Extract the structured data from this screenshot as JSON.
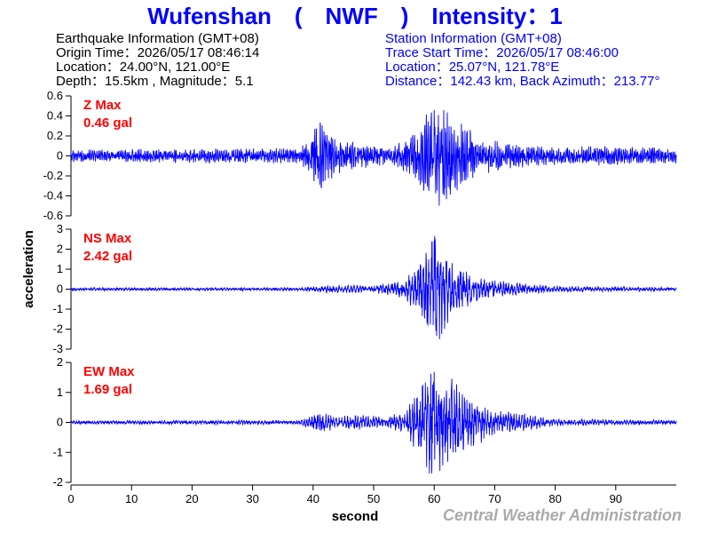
{
  "title": "Wufenshan　(　NWF　)　Intensity：1",
  "earthquake_info": [
    "Earthquake Information  (GMT+08)",
    "Origin Time：2026/05/17 08:46:14",
    "Location：24.00°N, 121.00°E",
    "Depth：15.5km , Magnitude：5.1"
  ],
  "station_info": [
    "Station Information  (GMT+08)",
    "Trace Start Time：2026/05/17 08:46:00",
    "Location：25.07°N, 121.78°E",
    "Distance：142.43 km, Back Azimuth：213.77°"
  ],
  "credit": "Central Weather Administration",
  "colors": {
    "title": "#0000ff",
    "trace": "#0000ff",
    "max_label": "#ff0000",
    "credit": "#aaaaaa",
    "axis": "#000000"
  },
  "chart_data": {
    "type": "line",
    "xlabel": "second",
    "ylabel": "acceleration",
    "xlim": [
      0,
      100
    ],
    "xticks": [
      0,
      10,
      20,
      30,
      40,
      50,
      60,
      70,
      80,
      90
    ],
    "panels": [
      {
        "component": "Z",
        "max_label": "Z Max",
        "max_value": "0.46 gal",
        "ylim": [
          -0.6,
          0.6
        ],
        "yticks": [
          0.6,
          0.4,
          0.2,
          0,
          -0.2,
          -0.4,
          -0.6
        ],
        "peak": 0.46,
        "envelope": [
          [
            0,
            0.05
          ],
          [
            38,
            0.06
          ],
          [
            41,
            0.28
          ],
          [
            44,
            0.14
          ],
          [
            48,
            0.1
          ],
          [
            53,
            0.07
          ],
          [
            56,
            0.15
          ],
          [
            59,
            0.36
          ],
          [
            61,
            0.42
          ],
          [
            63,
            0.32
          ],
          [
            67,
            0.16
          ],
          [
            72,
            0.1
          ],
          [
            80,
            0.07
          ],
          [
            86,
            0.08
          ],
          [
            100,
            0.06
          ]
        ]
      },
      {
        "component": "NS",
        "max_label": "NS Max",
        "max_value": "2.42 gal",
        "ylim": [
          -3,
          3
        ],
        "yticks": [
          3,
          2,
          1,
          0,
          -1,
          -2,
          -3
        ],
        "peak": 2.42,
        "envelope": [
          [
            0,
            0.06
          ],
          [
            38,
            0.06
          ],
          [
            42,
            0.14
          ],
          [
            50,
            0.17
          ],
          [
            55,
            0.35
          ],
          [
            58,
            1.2
          ],
          [
            60,
            2.35
          ],
          [
            61,
            2.0
          ],
          [
            63,
            1.1
          ],
          [
            66,
            0.6
          ],
          [
            70,
            0.35
          ],
          [
            80,
            0.12
          ],
          [
            100,
            0.07
          ]
        ]
      },
      {
        "component": "EW",
        "max_label": "EW Max",
        "max_value": "1.69 gal",
        "ylim": [
          -2,
          2
        ],
        "yticks": [
          2,
          1,
          0,
          -1,
          -2
        ],
        "peak": 1.69,
        "envelope": [
          [
            0,
            0.05
          ],
          [
            38,
            0.06
          ],
          [
            41,
            0.28
          ],
          [
            44,
            0.18
          ],
          [
            48,
            0.2
          ],
          [
            52,
            0.14
          ],
          [
            55,
            0.3
          ],
          [
            58,
            1.0
          ],
          [
            60,
            1.6
          ],
          [
            62,
            1.3
          ],
          [
            64,
            0.95
          ],
          [
            66,
            0.7
          ],
          [
            70,
            0.35
          ],
          [
            80,
            0.1
          ],
          [
            100,
            0.06
          ]
        ]
      }
    ]
  }
}
